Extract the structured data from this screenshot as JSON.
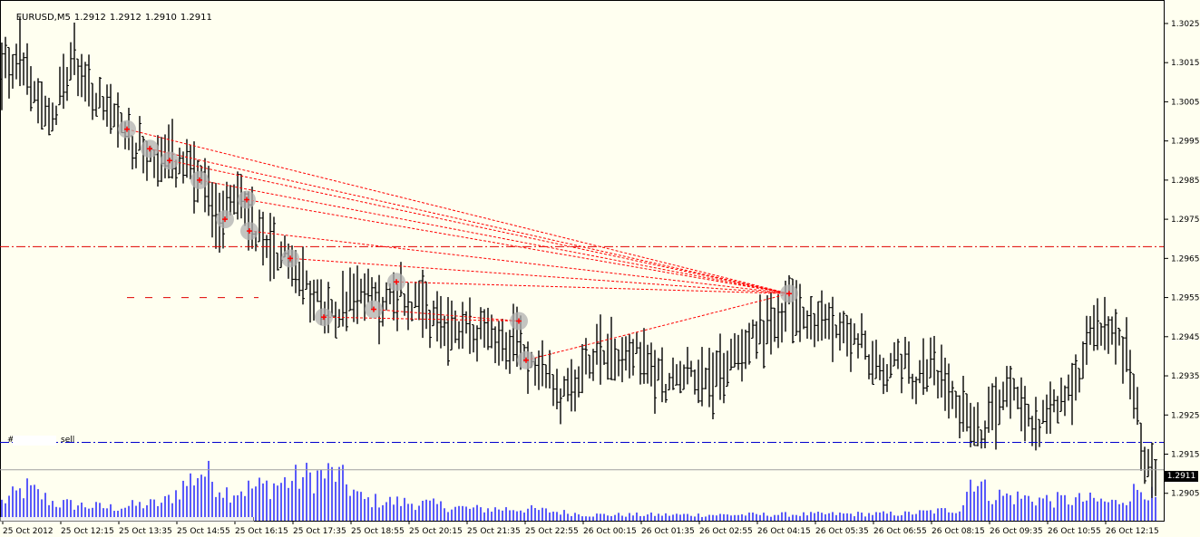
{
  "header": {
    "symbol_timeframe": "EURUSD,M5",
    "open": "1.2912",
    "high": "1.2912",
    "low": "1.2910",
    "close": "1.2911"
  },
  "current_price": "1.2911",
  "order_line": {
    "ticket": "#",
    "type": "sell"
  },
  "colors": {
    "background": "#fffff0",
    "bars": "#000000",
    "volume": "#0000ff",
    "trend_lines": "#ff0000",
    "sell_line": "#0000cd",
    "level_line": "#e00000"
  },
  "chart_data": {
    "type": "ohlc",
    "symbol": "EURUSD",
    "timeframe": "M5",
    "ylim": [
      1.2898,
      1.3031
    ],
    "y_ticks": [
      "1.3025",
      "1.3015",
      "1.3005",
      "1.2995",
      "1.2985",
      "1.2975",
      "1.2965",
      "1.2955",
      "1.2945",
      "1.2935",
      "1.2925",
      "1.2915",
      "1.2905"
    ],
    "x_ticks": [
      "25 Oct 2012",
      "25 Oct 12:15",
      "25 Oct 13:35",
      "25 Oct 14:55",
      "25 Oct 16:15",
      "25 Oct 17:35",
      "25 Oct 18:55",
      "25 Oct 20:15",
      "25 Oct 21:35",
      "25 Oct 22:55",
      "26 Oct 00:15",
      "26 Oct 01:35",
      "26 Oct 02:55",
      "26 Oct 04:15",
      "26 Oct 05:35",
      "26 Oct 06:55",
      "26 Oct 08:15",
      "26 Oct 09:35",
      "26 Oct 10:55",
      "26 Oct 12:15"
    ],
    "price_path": [
      [
        0,
        1.301
      ],
      [
        20,
        1.3018
      ],
      [
        40,
        1.3008
      ],
      [
        60,
        1.3002
      ],
      [
        80,
        1.3016
      ],
      [
        100,
        1.3008
      ],
      [
        120,
        1.3002
      ],
      [
        140,
        1.2997
      ],
      [
        160,
        1.2992
      ],
      [
        180,
        1.299
      ],
      [
        200,
        1.2989
      ],
      [
        220,
        1.2984
      ],
      [
        240,
        1.2975
      ],
      [
        260,
        1.2982
      ],
      [
        280,
        1.2973
      ],
      [
        300,
        1.2968
      ],
      [
        320,
        1.2965
      ],
      [
        340,
        1.2958
      ],
      [
        360,
        1.2951
      ],
      [
        380,
        1.2954
      ],
      [
        400,
        1.2957
      ],
      [
        420,
        1.2953
      ],
      [
        440,
        1.2957
      ],
      [
        460,
        1.2952
      ],
      [
        480,
        1.2948
      ],
      [
        500,
        1.2947
      ],
      [
        520,
        1.2948
      ],
      [
        540,
        1.2945
      ],
      [
        560,
        1.2943
      ],
      [
        575,
        1.2946
      ],
      [
        580,
        1.294
      ],
      [
        600,
        1.2938
      ],
      [
        615,
        1.2928
      ],
      [
        640,
        1.2935
      ],
      [
        660,
        1.2943
      ],
      [
        680,
        1.294
      ],
      [
        700,
        1.2942
      ],
      [
        720,
        1.2936
      ],
      [
        740,
        1.2933
      ],
      [
        760,
        1.2937
      ],
      [
        780,
        1.2933
      ],
      [
        800,
        1.2937
      ],
      [
        820,
        1.2944
      ],
      [
        840,
        1.2947
      ],
      [
        860,
        1.2948
      ],
      [
        870,
        1.2955
      ],
      [
        890,
        1.2949
      ],
      [
        910,
        1.2948
      ],
      [
        930,
        1.2947
      ],
      [
        950,
        1.2943
      ],
      [
        970,
        1.2935
      ],
      [
        990,
        1.294
      ],
      [
        1010,
        1.2934
      ],
      [
        1030,
        1.2937
      ],
      [
        1050,
        1.2932
      ],
      [
        1070,
        1.2923
      ],
      [
        1080,
        1.2918
      ],
      [
        1100,
        1.2928
      ],
      [
        1120,
        1.2933
      ],
      [
        1140,
        1.2922
      ],
      [
        1160,
        1.2928
      ],
      [
        1180,
        1.293
      ],
      [
        1200,
        1.2944
      ],
      [
        1215,
        1.2948
      ],
      [
        1230,
        1.2944
      ],
      [
        1245,
        1.294
      ],
      [
        1252,
        1.293
      ],
      [
        1262,
        1.2912
      ],
      [
        1275,
        1.2911
      ]
    ],
    "volume_path": [
      [
        0,
        0.3
      ],
      [
        30,
        0.55
      ],
      [
        60,
        0.3
      ],
      [
        120,
        0.22
      ],
      [
        180,
        0.3
      ],
      [
        222,
        0.85
      ],
      [
        250,
        0.5
      ],
      [
        300,
        0.6
      ],
      [
        340,
        0.75
      ],
      [
        370,
        0.8
      ],
      [
        400,
        0.35
      ],
      [
        460,
        0.3
      ],
      [
        520,
        0.2
      ],
      [
        580,
        0.2
      ],
      [
        650,
        0.1
      ],
      [
        800,
        0.1
      ],
      [
        1000,
        0.12
      ],
      [
        1060,
        0.2
      ],
      [
        1072,
        0.8
      ],
      [
        1090,
        0.45
      ],
      [
        1120,
        0.4
      ],
      [
        1160,
        0.35
      ],
      [
        1200,
        0.35
      ],
      [
        1230,
        0.3
      ],
      [
        1262,
        0.6
      ],
      [
        1275,
        0.3
      ]
    ],
    "horizontal_levels": [
      {
        "price": 1.2968,
        "style": "dash-dot",
        "color": "#e00000"
      },
      {
        "price": 1.2918,
        "style": "dash-dot",
        "color": "#0000cd",
        "label": "sell"
      },
      {
        "price": 1.2911,
        "style": "solid",
        "color": "#a0a0a0"
      }
    ],
    "short_level": {
      "price": 1.2955,
      "x_from": 140,
      "x_to": 285
    },
    "marked_points": [
      {
        "bar": 140,
        "price": 1.2998
      },
      {
        "bar": 165,
        "price": 1.2993
      },
      {
        "bar": 187,
        "price": 1.299
      },
      {
        "bar": 220,
        "price": 1.2985
      },
      {
        "bar": 248,
        "price": 1.2975
      },
      {
        "bar": 272,
        "price": 1.298
      },
      {
        "bar": 275,
        "price": 1.2972
      },
      {
        "bar": 320,
        "price": 1.2965
      },
      {
        "bar": 357,
        "price": 1.295
      },
      {
        "bar": 412,
        "price": 1.2952
      },
      {
        "bar": 437,
        "price": 1.2959
      },
      {
        "bar": 572,
        "price": 1.2949
      },
      {
        "bar": 580,
        "price": 1.2939
      },
      {
        "bar": 870,
        "price": 1.2956
      }
    ],
    "convergence_point": {
      "bar": 870,
      "price": 1.2956
    },
    "trend_line_starts": [
      {
        "bar": 140,
        "price": 1.2998
      },
      {
        "bar": 165,
        "price": 1.2993
      },
      {
        "bar": 187,
        "price": 1.299
      },
      {
        "bar": 220,
        "price": 1.2985
      },
      {
        "bar": 272,
        "price": 1.298
      },
      {
        "bar": 275,
        "price": 1.2972
      },
      {
        "bar": 320,
        "price": 1.2965
      },
      {
        "bar": 437,
        "price": 1.2959
      },
      {
        "bar": 580,
        "price": 1.2939
      }
    ],
    "extra_lines": [
      {
        "from": {
          "bar": 357,
          "price": 1.295
        },
        "to": {
          "bar": 572,
          "price": 1.2949
        }
      },
      {
        "from": {
          "bar": 412,
          "price": 1.2952
        },
        "to": {
          "bar": 572,
          "price": 1.2949
        }
      }
    ]
  }
}
